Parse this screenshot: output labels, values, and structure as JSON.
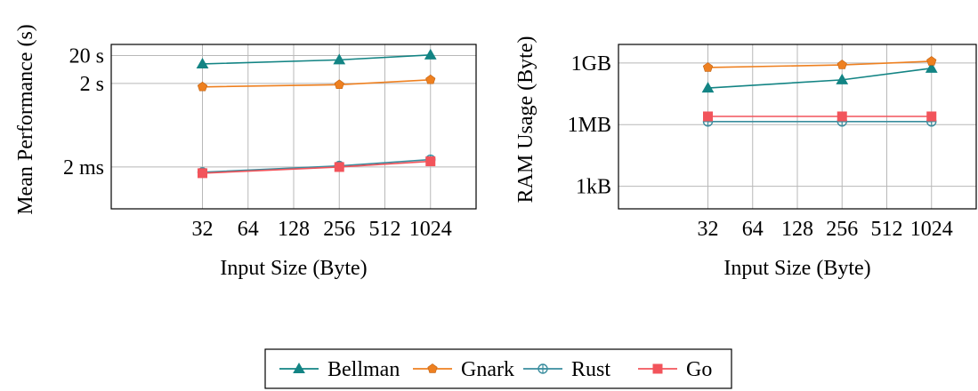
{
  "chart_data": [
    {
      "type": "line",
      "xlabel": "Input Size (Byte)",
      "ylabel": "Mean Performance (s)",
      "x_scale": "log2",
      "y_scale": "log10",
      "x_ticks": [
        32,
        64,
        128,
        256,
        512,
        1024
      ],
      "x_tick_labels": [
        "32",
        "64",
        "128",
        "256",
        "512",
        "1024"
      ],
      "y_ticks": [
        0.002,
        2,
        20
      ],
      "y_tick_labels": [
        "2 ms",
        "2 s",
        "20 s"
      ],
      "xlim": [
        8,
        2048
      ],
      "ylim_log10": [
        -4.2,
        1.7
      ],
      "grid": true,
      "series": [
        {
          "name": "Bellman",
          "x": [
            32,
            256,
            1024
          ],
          "y": [
            10,
            14,
            21
          ]
        },
        {
          "name": "Gnark",
          "x": [
            32,
            256,
            1024
          ],
          "y": [
            1.5,
            1.8,
            2.7
          ]
        },
        {
          "name": "Rust",
          "x": [
            32,
            256,
            1024
          ],
          "y": [
            0.0013,
            0.0022,
            0.0037
          ]
        },
        {
          "name": "Go",
          "x": [
            32,
            256,
            1024
          ],
          "y": [
            0.0012,
            0.002,
            0.0032
          ]
        }
      ]
    },
    {
      "type": "line",
      "xlabel": "Input Size (Byte)",
      "ylabel": "RAM Usage (Byte)",
      "x_scale": "log2",
      "y_scale": "log10",
      "x_ticks": [
        32,
        64,
        128,
        256,
        512,
        1024
      ],
      "x_tick_labels": [
        "32",
        "64",
        "128",
        "256",
        "512",
        "1024"
      ],
      "y_ticks": [
        1000,
        1000000,
        1000000000
      ],
      "y_tick_labels": [
        "1kB",
        "1MB",
        "1GB"
      ],
      "xlim": [
        8,
        2048
      ],
      "ylim_log10": [
        1.9,
        9.9
      ],
      "grid": true,
      "series": [
        {
          "name": "Bellman",
          "x": [
            32,
            256,
            1024
          ],
          "y": [
            60000000,
            150000000,
            550000000
          ]
        },
        {
          "name": "Gnark",
          "x": [
            32,
            256,
            1024
          ],
          "y": [
            600000000,
            800000000,
            1200000000
          ]
        },
        {
          "name": "Rust",
          "x": [
            32,
            256,
            1024
          ],
          "y": [
            1400000,
            1400000,
            1400000
          ]
        },
        {
          "name": "Go",
          "x": [
            32,
            256,
            1024
          ],
          "y": [
            2500000,
            2500000,
            2500000
          ]
        }
      ]
    }
  ],
  "legend": {
    "placement": "bottom-center",
    "items": [
      {
        "name": "Bellman",
        "color": "#138484",
        "marker": "triangle"
      },
      {
        "name": "Gnark",
        "color": "#ee8020",
        "marker": "pentagon"
      },
      {
        "name": "Rust",
        "color": "#3a8d9e",
        "marker": "oplus"
      },
      {
        "name": "Go",
        "color": "#f2545b",
        "marker": "square"
      }
    ]
  }
}
